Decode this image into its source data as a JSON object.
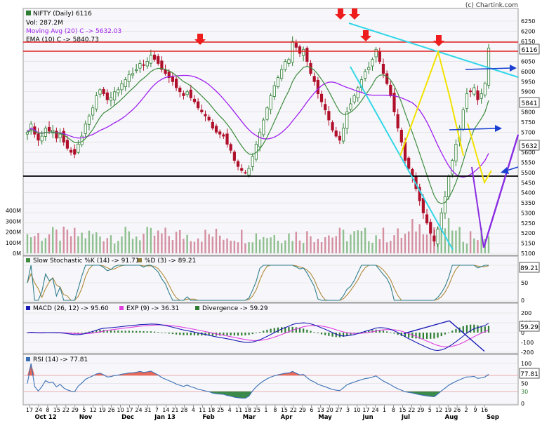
{
  "header": {
    "copyright": "(c) Chartink.com",
    "title": "NIFTY (Daily) 6116",
    "vol": "Vol: 287.2M",
    "ma20": "Moving Avg (20) C -> 5632.03",
    "ema10": "EMA (10) C -> 5840.73"
  },
  "colors": {
    "background": "#ffffff",
    "panel_bg": "#f7f7fb",
    "grid": "#d9d9d9",
    "up_candle": "#2e7d32",
    "down_candle": "#b0102a",
    "ma20": "#a020f0",
    "ema10": "#3d8b3d",
    "resistance": "#e02020",
    "support": "#000000",
    "trendline": "#33d6e8",
    "marker": "#ee1c1c",
    "arrow": "#1a3fd1",
    "wedge": "#8a2be2",
    "yellow": "#f2e200",
    "rsi_fill": "#e86a5a",
    "rsi_low_fill": "#3c8a4a",
    "volume_bar": "#d48fa0"
  },
  "price_axis": {
    "ticks": [
      "6250",
      "6200",
      "6150",
      "6100",
      "6050",
      "6000",
      "5950",
      "5900",
      "5850",
      "5800",
      "5750",
      "5700",
      "5650",
      "5600",
      "5550",
      "5500",
      "5450",
      "5400",
      "5350",
      "5300",
      "5250",
      "5200",
      "5150",
      "5100"
    ],
    "last_price": "6116",
    "ema_value": "5841",
    "ma_value": "5632"
  },
  "volume_axis": {
    "ticks": [
      "400M",
      "300M",
      "200M",
      "100M",
      "0M"
    ]
  },
  "stoch": {
    "label_k": "Slow Stochastic %K (14) -> 91.71",
    "label_d": "%D (3) -> 89.21",
    "ticks": [
      "100",
      "50",
      "0"
    ],
    "last_value": "89.21"
  },
  "macd": {
    "label_macd": "MACD (26, 12) -> 95.60",
    "label_exp": "EXP (9) -> 36.31",
    "label_div": "Divergence -> 59.29",
    "ticks": [
      "200",
      "100",
      "0",
      "-100",
      "-200"
    ],
    "last_value": "59.29"
  },
  "rsi": {
    "label": "RSI (14) -> 77.81",
    "ticks": [
      "100",
      "70",
      "50",
      "30",
      "0"
    ],
    "last_value": "77.81"
  },
  "x_axis": {
    "day_ticks": [
      "17",
      "24",
      "8",
      "15",
      "22",
      "29",
      "5",
      "12",
      "19",
      "26",
      "10",
      "17",
      "24",
      "31",
      "7",
      "14",
      "21",
      "28",
      "4",
      "11",
      "18",
      "25",
      "4",
      "11",
      "18",
      "25",
      "1",
      "8",
      "15",
      "22",
      "29",
      "6",
      "13",
      "20",
      "27",
      "3",
      "10",
      "17",
      "24",
      "1",
      "8",
      "15",
      "22",
      "29",
      "5",
      "12",
      "19",
      "26",
      "2",
      "9",
      "16"
    ],
    "month_ticks": [
      "Oct 12",
      "Nov",
      "Dec",
      "Jan 13",
      "Feb",
      "Mar",
      "Apr",
      "May",
      "Jun",
      "Jul",
      "Aug",
      "Sep"
    ]
  },
  "chart_data": {
    "type": "candlestick",
    "title": "NIFTY (Daily) 6116",
    "period": "Daily, Oct 2012 - Sep 2013",
    "ylim": [
      5100,
      6280
    ],
    "levels": {
      "resistance_upper": 6140,
      "resistance_lower": 6100,
      "support": 5480
    },
    "close_series": [
      5700,
      5740,
      5690,
      5660,
      5680,
      5720,
      5705,
      5710,
      5670,
      5690,
      5650,
      5620,
      5600,
      5590,
      5640,
      5680,
      5740,
      5780,
      5820,
      5880,
      5910,
      5890,
      5860,
      5870,
      5900,
      5910,
      5940,
      5960,
      5985,
      5990,
      6010,
      6040,
      6030,
      6050,
      6080,
      6060,
      6040,
      6010,
      5990,
      5970,
      5950,
      5920,
      5900,
      5880,
      5900,
      5870,
      5850,
      5820,
      5800,
      5780,
      5760,
      5720,
      5700,
      5690,
      5680,
      5640,
      5610,
      5560,
      5530,
      5510,
      5500,
      5520,
      5580,
      5640,
      5700,
      5760,
      5820,
      5880,
      5930,
      5970,
      6010,
      6050,
      6060,
      6150,
      6120,
      6090,
      6110,
      6050,
      5990,
      5950,
      5890,
      5850,
      5810,
      5760,
      5710,
      5680,
      5660,
      5720,
      5800,
      5840,
      5880,
      5920,
      5960,
      6000,
      6020,
      6060,
      6110,
      6050,
      5990,
      5940,
      5880,
      5800,
      5720,
      5650,
      5560,
      5520,
      5480,
      5420,
      5360,
      5300,
      5250,
      5200,
      5160,
      5220,
      5300,
      5380,
      5480,
      5560,
      5640,
      5720,
      5810,
      5890,
      5900,
      5920,
      5860,
      5890,
      5941,
      6116
    ],
    "ma20_last": 5632.03,
    "ema10_last": 5840.73,
    "volume_last": "287.2M",
    "stoch_k_last": 91.71,
    "stoch_d_last": 89.21,
    "macd_last": 95.6,
    "macd_exp_last": 36.31,
    "macd_div_last": 59.29,
    "rsi_last": 77.81,
    "rsi_levels": [
      30,
      50,
      70
    ]
  }
}
